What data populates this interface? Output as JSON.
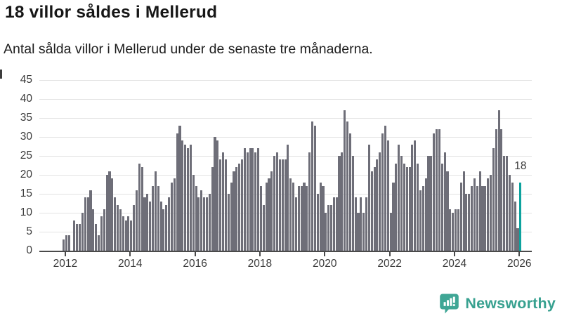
{
  "header": {
    "title": "18 villor såldes i Mellerud",
    "subtitle": "Antal sålda villor i Mellerud under de senaste tre månaderna."
  },
  "chart_data": {
    "type": "bar",
    "title": "18 villor såldes i Mellerud",
    "subtitle": "Antal sålda villor i Mellerud under de senaste tre månaderna.",
    "unit": "sålda villor per 3-månadersperiod",
    "x_start_month": "2011-12",
    "x_end_month": "2026-01",
    "x_tick_labels": [
      "2012",
      "2014",
      "2016",
      "2018",
      "2020",
      "2022",
      "2024",
      "2026"
    ],
    "y_ticks": [
      0,
      5,
      10,
      15,
      20,
      25,
      30,
      35,
      40,
      45
    ],
    "ylim": [
      0,
      45
    ],
    "grid": "horizontal",
    "legend": "none",
    "values": [
      3,
      4,
      4,
      0,
      8,
      7,
      7,
      10,
      14,
      14,
      16,
      11,
      7,
      4,
      9,
      11,
      20,
      21,
      19,
      14,
      12,
      11,
      9,
      8,
      9,
      8,
      12,
      16,
      23,
      22,
      14,
      15,
      13,
      17,
      21,
      17,
      13,
      11,
      12,
      14,
      18,
      19,
      31,
      33,
      29,
      28,
      27,
      28,
      20,
      17,
      14,
      16,
      14,
      14,
      15,
      22,
      30,
      29,
      24,
      26,
      24,
      15,
      18,
      21,
      22,
      23,
      24,
      27,
      26,
      27,
      27,
      26,
      27,
      17,
      12,
      18,
      19,
      21,
      25,
      26,
      24,
      24,
      24,
      28,
      19,
      18,
      14,
      17,
      17,
      18,
      17,
      26,
      34,
      33,
      15,
      18,
      17,
      10,
      12,
      12,
      14,
      14,
      25,
      26,
      37,
      34,
      31,
      25,
      14,
      10,
      14,
      10,
      14,
      28,
      21,
      22,
      24,
      26,
      31,
      33,
      29,
      10,
      18,
      23,
      28,
      25,
      23,
      22,
      22,
      28,
      29,
      23,
      16,
      17,
      19,
      25,
      25,
      31,
      32,
      32,
      23,
      26,
      21,
      11,
      10,
      11,
      11,
      18,
      21,
      15,
      15,
      17,
      19,
      17,
      21,
      17,
      17,
      19,
      20,
      27,
      32,
      37,
      32,
      25,
      25,
      20,
      18,
      13,
      6,
      18
    ],
    "highlight_last": true,
    "annotation": {
      "text": "18"
    },
    "colors": {
      "bar": "#6e6e78",
      "highlight": "#0da29e",
      "gridline": "#e3e3e3",
      "axis": "#4a4a4a"
    }
  },
  "branding": {
    "logo_text": "Newsworthy",
    "logo_color": "#38a190",
    "logo_icon": "bar-chart-speech-bubble"
  }
}
